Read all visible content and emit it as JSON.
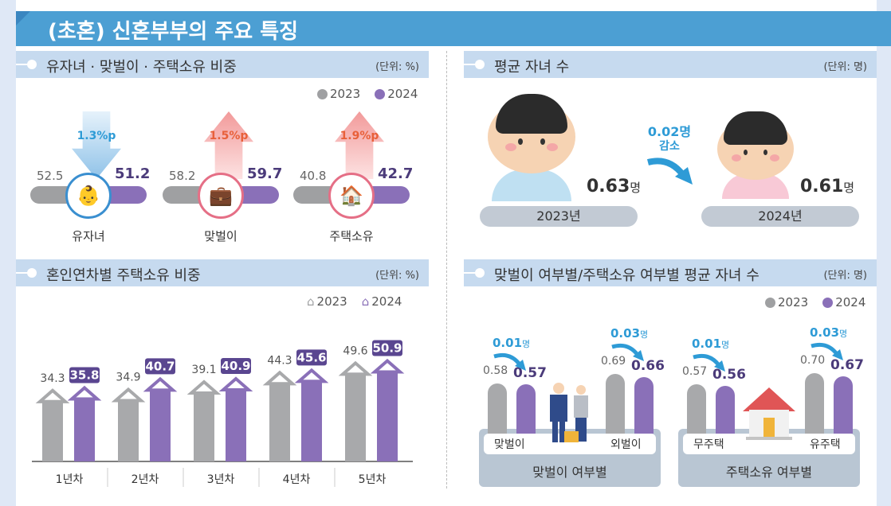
{
  "title": "(초혼) 신혼부부의 주요 특징",
  "colors": {
    "y2023": "#9fa0a2",
    "y2024": "#8a70b8",
    "accent": "#4c9fd3",
    "decrease": "#2e9bd6",
    "increase": "#e8603a"
  },
  "legend": {
    "y2023": "2023",
    "y2024": "2024"
  },
  "section1": {
    "title": "유자녀 · 맞벌이 · 주택소유 비중",
    "unit": "(단위: %)",
    "items": [
      {
        "label": "유자녀",
        "v2023": "52.5",
        "v2024": "51.2",
        "change": "1.3%p",
        "direction": "down",
        "icon": "baby-icon"
      },
      {
        "label": "맞벌이",
        "v2023": "58.2",
        "v2024": "59.7",
        "change": "1.5%p",
        "direction": "up",
        "icon": "briefcase-icon"
      },
      {
        "label": "주택소유",
        "v2023": "40.8",
        "v2024": "42.7",
        "change": "1.9%p",
        "direction": "up",
        "icon": "house-icon"
      }
    ]
  },
  "section2": {
    "title": "평균 자녀 수",
    "unit": "(단위: 명)",
    "y2023": {
      "label": "2023년",
      "value": "0.63",
      "unit": "명"
    },
    "y2024": {
      "label": "2024년",
      "value": "0.61",
      "unit": "명"
    },
    "change": {
      "value": "0.02명",
      "text": "감소"
    }
  },
  "chart_data": [
    {
      "type": "bar",
      "title": "혼인연차별 주택소유 비중",
      "unit": "(단위: %)",
      "categories": [
        "1년차",
        "2년차",
        "3년차",
        "4년차",
        "5년차"
      ],
      "series": [
        {
          "name": "2023",
          "values": [
            34.3,
            34.9,
            39.1,
            44.3,
            49.6
          ]
        },
        {
          "name": "2024",
          "values": [
            35.8,
            40.7,
            40.9,
            45.6,
            50.9
          ]
        }
      ],
      "legend": "top-right"
    },
    {
      "type": "bar",
      "title": "맞벌이 여부별/주택소유 여부별 평균 자녀 수",
      "unit": "(단위: 명)",
      "groups": [
        {
          "title": "맞벌이 여부별",
          "categories": [
            "맞벌이",
            "외벌이"
          ],
          "changes": [
            "0.01",
            "0.03"
          ],
          "change_unit": "명"
        },
        {
          "title": "주택소유 여부별",
          "categories": [
            "무주택",
            "유주택"
          ],
          "changes": [
            "0.01",
            "0.03"
          ],
          "change_unit": "명"
        }
      ],
      "categories": [
        "맞벌이",
        "외벌이",
        "무주택",
        "유주택"
      ],
      "series": [
        {
          "name": "2023",
          "values": [
            0.58,
            0.69,
            0.57,
            0.7
          ]
        },
        {
          "name": "2024",
          "values": [
            0.57,
            0.66,
            0.56,
            0.67
          ]
        }
      ],
      "legend": "top-right"
    }
  ]
}
